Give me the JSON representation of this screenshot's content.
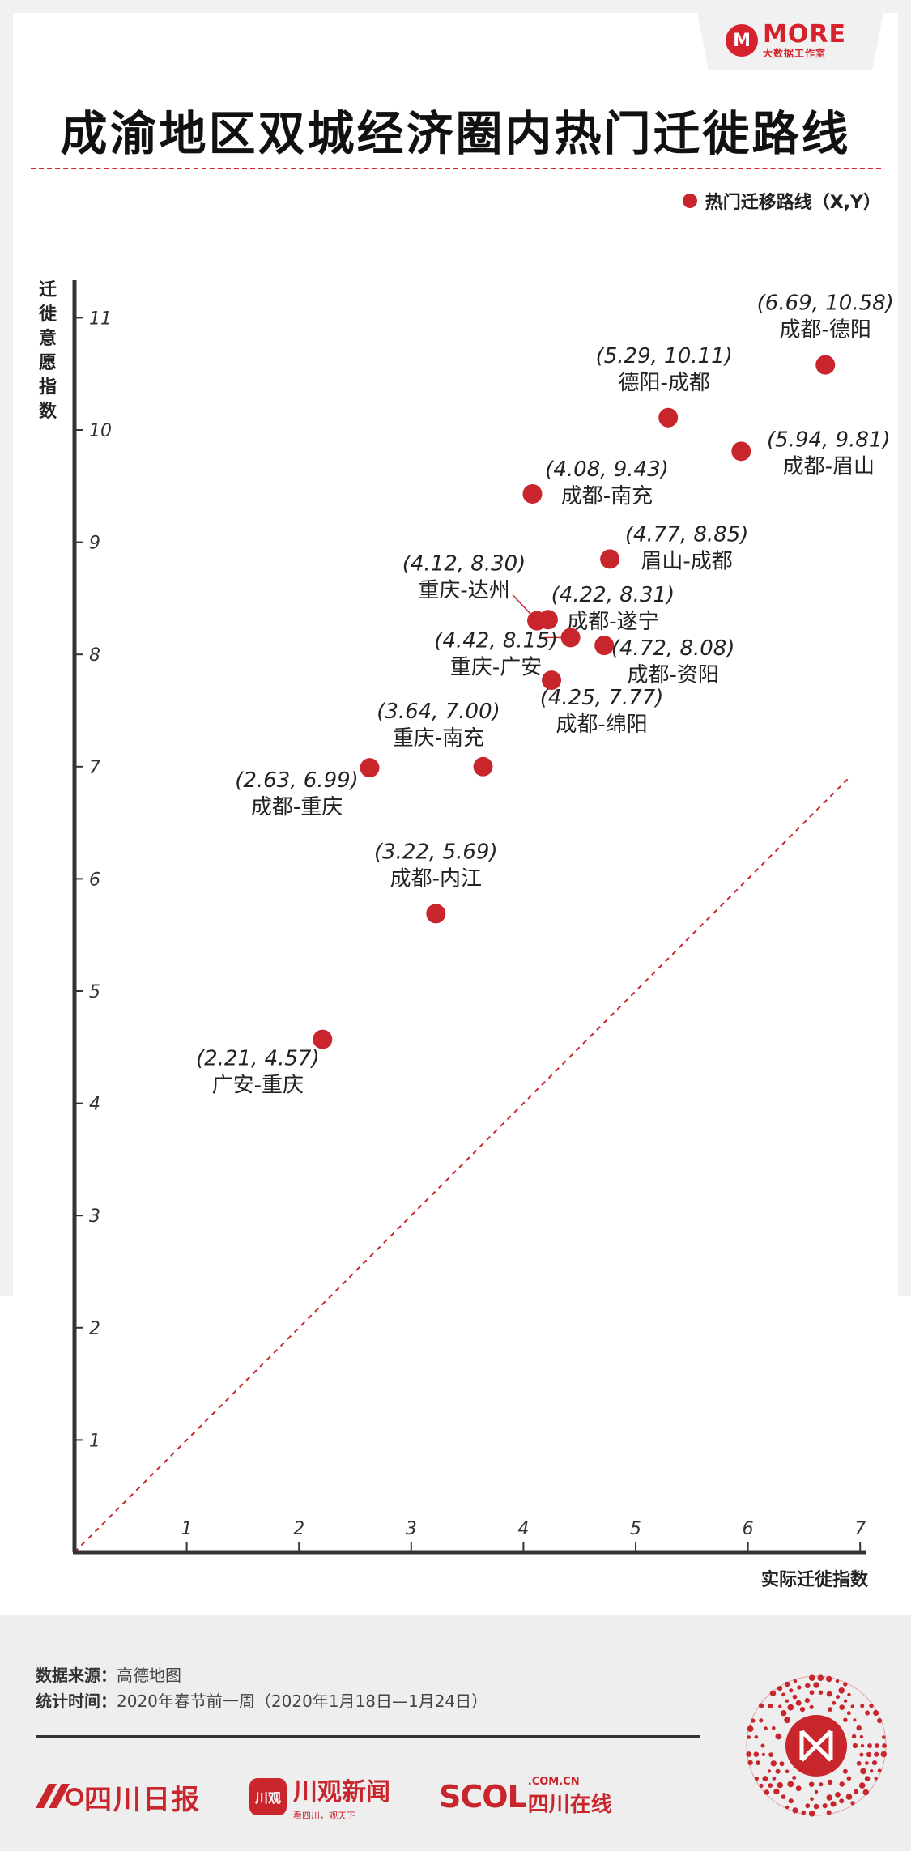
{
  "brand": {
    "name": "MORE",
    "subtitle": "大数据工作室"
  },
  "title": "成渝地区双城经济圈内热门迁徙路线",
  "legend_label": "热门迁移路线（X,Y）",
  "colors": {
    "point": "#c9252d",
    "accent": "#d6222c",
    "axis": "#333333"
  },
  "chart_data": {
    "type": "scatter",
    "xlabel": "实际迁徙指数",
    "ylabel": "迁徙意愿指数",
    "xlim": [
      0,
      7
    ],
    "ylim": [
      0,
      11
    ],
    "xticks": [
      "1",
      "2",
      "3",
      "4",
      "5",
      "6",
      "7"
    ],
    "yticks": [
      "1",
      "2",
      "3",
      "4",
      "5",
      "6",
      "7",
      "8",
      "9",
      "10",
      "11"
    ],
    "reference_line": "y = x (dashed)",
    "points": [
      {
        "route": "成都-德阳",
        "x": 6.69,
        "y": 10.58,
        "coord": "(6.69, 10.58)"
      },
      {
        "route": "德阳-成都",
        "x": 5.29,
        "y": 10.11,
        "coord": "(5.29, 10.11)"
      },
      {
        "route": "成都-眉山",
        "x": 5.94,
        "y": 9.81,
        "coord": "(5.94, 9.81)"
      },
      {
        "route": "成都-南充",
        "x": 4.08,
        "y": 9.43,
        "coord": "(4.08, 9.43)"
      },
      {
        "route": "眉山-成都",
        "x": 4.77,
        "y": 8.85,
        "coord": "(4.77, 8.85)"
      },
      {
        "route": "重庆-达州",
        "x": 4.12,
        "y": 8.3,
        "coord": "(4.12, 8.30)"
      },
      {
        "route": "成都-遂宁",
        "x": 4.22,
        "y": 8.31,
        "coord": "(4.22, 8.31)"
      },
      {
        "route": "重庆-广安",
        "x": 4.42,
        "y": 8.15,
        "coord": "(4.42, 8.15)"
      },
      {
        "route": "成都-资阳",
        "x": 4.72,
        "y": 8.08,
        "coord": "(4.72, 8.08)"
      },
      {
        "route": "成都-绵阳",
        "x": 4.25,
        "y": 7.77,
        "coord": "(4.25, 7.77)"
      },
      {
        "route": "重庆-南充",
        "x": 3.64,
        "y": 7.0,
        "coord": "(3.64, 7.00)"
      },
      {
        "route": "成都-重庆",
        "x": 2.63,
        "y": 6.99,
        "coord": "(2.63, 6.99)"
      },
      {
        "route": "成都-内江",
        "x": 3.22,
        "y": 5.69,
        "coord": "(3.22, 5.69)"
      },
      {
        "route": "广安-重庆",
        "x": 2.21,
        "y": 4.57,
        "coord": "(2.21, 4.57)"
      }
    ]
  },
  "source": {
    "data_label": "数据来源：",
    "data_value": "高德地图",
    "time_label": "统计时间：",
    "time_value": "2020年春节前一周（2020年1月18日—1月24日）"
  },
  "footer_logos": {
    "sichuan_daily": "四川日报",
    "chuanguan_mark": "川观",
    "chuanguan_name": "川观新闻",
    "chuanguan_tag": "看四川，观天下",
    "scol": "SCOL",
    "scol_domain": ".COM.CN",
    "scol_cn": "四川在线"
  }
}
